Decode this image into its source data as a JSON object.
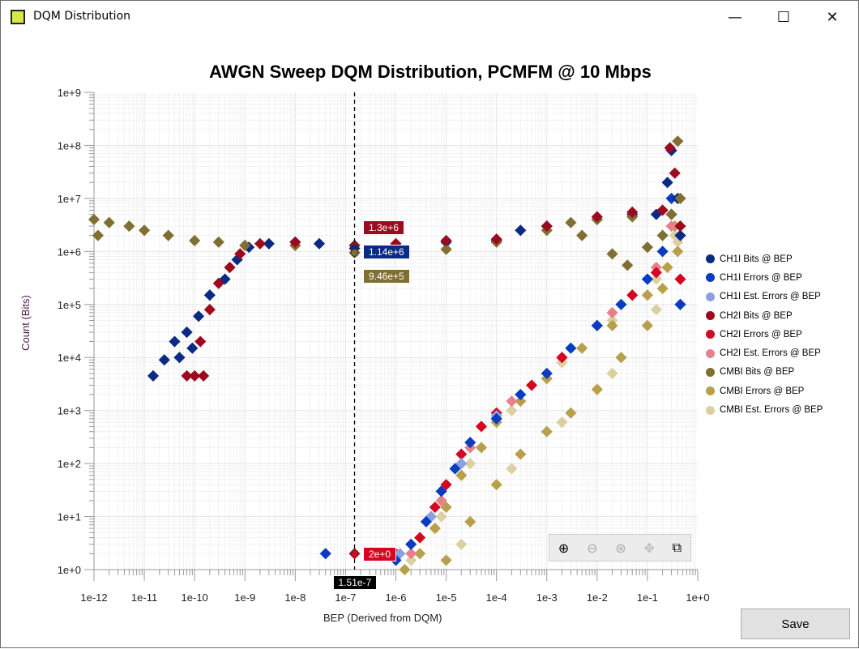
{
  "window": {
    "title": "DQM Distribution",
    "minimize": "—",
    "maximize": "☐",
    "close": "✕"
  },
  "save_label": "Save",
  "toolbar": {
    "icons": [
      "zoom-in-icon",
      "zoom-out-icon",
      "zoom-reset-icon",
      "pan-icon",
      "zoom-box-icon"
    ]
  },
  "crosshair": {
    "x_label": "1.51e-7",
    "labels": [
      {
        "text": "1.3e+6",
        "color": "#9b0a1e"
      },
      {
        "text": "1.14e+6",
        "color": "#0a2a84"
      },
      {
        "text": "9.46e+5",
        "color": "#7f6f32"
      },
      {
        "text": "2e+0",
        "color": "#d5061f"
      }
    ]
  },
  "chart_data": {
    "type": "scatter",
    "title": "AWGN Sweep DQM Distribution, PCMFM @ 10 Mbps",
    "xlabel": "BEP (Derived from DQM)",
    "ylabel": "Count (Bits)",
    "xscale": "log",
    "yscale": "log",
    "xlim": [
      1e-12,
      1
    ],
    "ylim": [
      1,
      1000000000.0
    ],
    "xticks": [
      "1e-12",
      "1e-11",
      "1e-10",
      "1e-9",
      "1e-8",
      "1e-7",
      "1e-6",
      "1e-5",
      "1e-4",
      "1e-3",
      "1e-2",
      "1e-1",
      "1e+0"
    ],
    "yticks": [
      "1e+0",
      "1e+1",
      "1e+2",
      "1e+3",
      "1e+4",
      "1e+5",
      "1e+6",
      "1e+7",
      "1e+8",
      "1e+9"
    ],
    "grid": true,
    "legend": "right",
    "marker": "diamond",
    "series": [
      {
        "name": "CMBI Bits @ BEP",
        "color": "#7f6f32",
        "points": [
          [
            1e-12,
            4000000.0
          ],
          [
            1.2e-12,
            2000000.0
          ],
          [
            2e-12,
            3500000.0
          ],
          [
            5e-12,
            3000000.0
          ],
          [
            1e-11,
            2500000.0
          ],
          [
            3e-11,
            2000000.0
          ],
          [
            1e-10,
            1600000.0
          ],
          [
            3e-10,
            1500000.0
          ],
          [
            1e-09,
            1300000.0
          ],
          [
            1e-08,
            1300000.0
          ],
          [
            1.51e-07,
            946000.0
          ],
          [
            1e-06,
            1200000.0
          ],
          [
            1e-05,
            1100000.0
          ],
          [
            0.0001,
            1500000.0
          ],
          [
            0.001,
            2500000.0
          ],
          [
            0.003,
            3500000.0
          ],
          [
            0.01,
            4000000.0
          ],
          [
            0.05,
            4500000.0
          ],
          [
            0.005,
            2000000.0
          ],
          [
            0.02,
            900000.0
          ],
          [
            0.04,
            550000.0
          ],
          [
            0.1,
            1200000.0
          ],
          [
            0.2,
            2000000.0
          ],
          [
            0.3,
            5000000.0
          ],
          [
            0.4,
            120000000.0
          ],
          [
            0.45,
            10000000.0
          ]
        ]
      },
      {
        "name": "CH1I Bits @ BEP",
        "color": "#0a2a84",
        "points": [
          [
            1.5e-11,
            4500.0
          ],
          [
            2.5e-11,
            9000.0
          ],
          [
            4e-11,
            20000.0
          ],
          [
            5e-11,
            10000.0
          ],
          [
            7e-11,
            30000.0
          ],
          [
            9e-11,
            15000.0
          ],
          [
            1.2e-10,
            60000.0
          ],
          [
            2e-10,
            150000.0
          ],
          [
            4e-10,
            300000.0
          ],
          [
            7e-10,
            700000.0
          ],
          [
            1.2e-09,
            1200000.0
          ],
          [
            3e-09,
            1400000.0
          ],
          [
            1e-08,
            1500000.0
          ],
          [
            3e-08,
            1400000.0
          ],
          [
            1.51e-07,
            1140000.0
          ],
          [
            1e-06,
            1300000.0
          ],
          [
            1e-05,
            1500000.0
          ],
          [
            0.0001,
            1600000.0
          ],
          [
            0.0003,
            2500000.0
          ],
          [
            0.001,
            3000000.0
          ],
          [
            0.01,
            4000000.0
          ],
          [
            0.05,
            5000000.0
          ],
          [
            0.15,
            5000000.0
          ],
          [
            0.25,
            20000000.0
          ],
          [
            0.3,
            80000000.0
          ],
          [
            0.4,
            10000000.0
          ],
          [
            0.45,
            2000000.0
          ]
        ]
      },
      {
        "name": "CH1I Errors @ BEP",
        "color": "#0a3cc0",
        "points": [
          [
            4e-08,
            2
          ],
          [
            1e-06,
            1.5
          ],
          [
            2e-06,
            3
          ],
          [
            4e-06,
            8
          ],
          [
            8e-06,
            30
          ],
          [
            1.5e-05,
            80
          ],
          [
            3e-05,
            250
          ],
          [
            0.0001,
            700
          ],
          [
            0.0003,
            2000.0
          ],
          [
            0.001,
            5000.0
          ],
          [
            0.003,
            15000.0
          ],
          [
            0.01,
            40000.0
          ],
          [
            0.03,
            100000.0
          ],
          [
            0.1,
            300000.0
          ],
          [
            0.2,
            1000000.0
          ],
          [
            0.3,
            10000000.0
          ],
          [
            0.45,
            100000.0
          ]
        ]
      },
      {
        "name": "CH1I Est. Errors @ BEP",
        "color": "#8aa0e0",
        "points": [
          [
            1.2e-06,
            2
          ],
          [
            5e-06,
            10
          ],
          [
            2e-05,
            100
          ],
          [
            0.0001,
            800
          ],
          [
            0.001,
            5000.0
          ],
          [
            0.01,
            40000.0
          ],
          [
            0.1,
            300000.0
          ],
          [
            0.3,
            5000000.0
          ],
          [
            0.45,
            100000.0
          ]
        ]
      },
      {
        "name": "CH2I Bits @ BEP",
        "color": "#9b0a1e",
        "points": [
          [
            7e-11,
            4500.0
          ],
          [
            1e-10,
            4500.0
          ],
          [
            1.5e-10,
            4500.0
          ],
          [
            1.3e-10,
            20000.0
          ],
          [
            2e-10,
            80000.0
          ],
          [
            3e-10,
            250000.0
          ],
          [
            5e-10,
            500000.0
          ],
          [
            8e-10,
            900000.0
          ],
          [
            2e-09,
            1400000.0
          ],
          [
            1e-08,
            1500000.0
          ],
          [
            1.51e-07,
            1300000.0
          ],
          [
            1e-06,
            1400000.0
          ],
          [
            1e-05,
            1600000.0
          ],
          [
            0.0001,
            1700000.0
          ],
          [
            0.001,
            3000000.0
          ],
          [
            0.01,
            4500000.0
          ],
          [
            0.05,
            5500000.0
          ],
          [
            0.2,
            6000000.0
          ],
          [
            0.28,
            90000000.0
          ],
          [
            0.35,
            30000000.0
          ],
          [
            0.45,
            3000000.0
          ]
        ]
      },
      {
        "name": "CH2I Errors @ BEP",
        "color": "#d5061f",
        "points": [
          [
            1.51e-07,
            2
          ],
          [
            1e-06,
            2
          ],
          [
            3e-06,
            4
          ],
          [
            6e-06,
            15
          ],
          [
            1e-05,
            40
          ],
          [
            2e-05,
            150
          ],
          [
            5e-05,
            500
          ],
          [
            0.0001,
            900
          ],
          [
            0.0005,
            3000.0
          ],
          [
            0.002,
            10000.0
          ],
          [
            0.01,
            40000.0
          ],
          [
            0.05,
            150000.0
          ],
          [
            0.15,
            400000.0
          ],
          [
            0.3,
            5000000.0
          ],
          [
            0.45,
            300000.0
          ]
        ]
      },
      {
        "name": "CH2I Est. Errors @ BEP",
        "color": "#e8808c",
        "points": [
          [
            2e-06,
            2
          ],
          [
            8e-06,
            20
          ],
          [
            3e-05,
            200
          ],
          [
            0.0002,
            1500.0
          ],
          [
            0.002,
            10000.0
          ],
          [
            0.02,
            70000.0
          ],
          [
            0.15,
            500000.0
          ],
          [
            0.3,
            3000000.0
          ]
        ]
      },
      {
        "name": "CMBI Errors @ BEP",
        "color": "#b8a04a",
        "points": [
          [
            1.5e-06,
            1
          ],
          [
            3e-06,
            2
          ],
          [
            6e-06,
            6
          ],
          [
            1e-05,
            15
          ],
          [
            2e-05,
            60
          ],
          [
            5e-05,
            200
          ],
          [
            0.0001,
            600
          ],
          [
            0.0003,
            1500.0
          ],
          [
            0.001,
            4000.0
          ],
          [
            0.005,
            15000.0
          ],
          [
            0.02,
            40000.0
          ],
          [
            0.1,
            150000.0
          ],
          [
            0.25,
            500000.0
          ],
          [
            0.35,
            3000000.0
          ],
          [
            1e-05,
            1.5
          ],
          [
            3e-05,
            8
          ],
          [
            0.0001,
            40
          ],
          [
            0.0003,
            150
          ],
          [
            0.001,
            400
          ],
          [
            0.003,
            900
          ],
          [
            0.01,
            2500.0
          ],
          [
            0.03,
            10000.0
          ],
          [
            0.1,
            40000.0
          ],
          [
            0.2,
            200000.0
          ],
          [
            0.4,
            1000000.0
          ]
        ]
      },
      {
        "name": "CMBI Est. Errors @ BEP",
        "color": "#ddd0a0",
        "points": [
          [
            2e-06,
            1.5
          ],
          [
            8e-06,
            10
          ],
          [
            3e-05,
            100
          ],
          [
            0.0002,
            1000.0
          ],
          [
            0.002,
            8000.0
          ],
          [
            0.02,
            50000.0
          ],
          [
            0.15,
            300000.0
          ],
          [
            0.35,
            2000000.0
          ],
          [
            2e-05,
            3
          ],
          [
            0.0002,
            80
          ],
          [
            0.002,
            600
          ],
          [
            0.02,
            5000.0
          ],
          [
            0.15,
            80000.0
          ],
          [
            0.4,
            1500000.0
          ]
        ]
      }
    ]
  }
}
